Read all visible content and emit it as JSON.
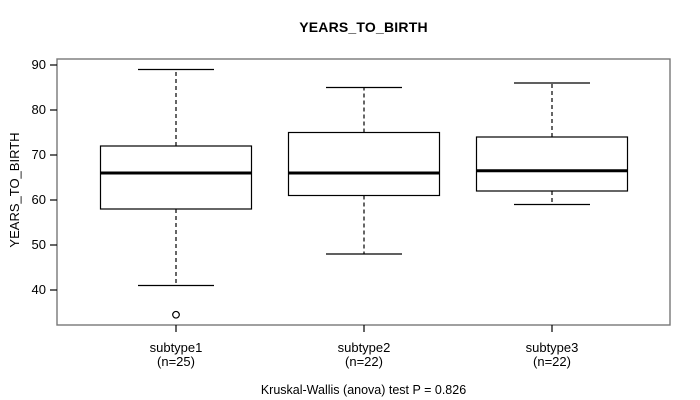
{
  "title": "YEARS_TO_BIRTH",
  "caption": "Kruskal-Wallis (anova) test P = 0.826",
  "y_axis": {
    "label": "YEARS_TO_BIRTH",
    "ticks": [
      90,
      80,
      70,
      60,
      50,
      40
    ]
  },
  "groups": [
    {
      "label": "subtype1",
      "sublabel": "(n=25)"
    },
    {
      "label": "subtype2",
      "sublabel": "(n=22)"
    },
    {
      "label": "subtype3",
      "sublabel": "(n=22)"
    }
  ],
  "colors": {
    "line": "#000000",
    "frame": "#777777",
    "box_fill": "#ffffff",
    "background": "#ffffff"
  },
  "chart_data": {
    "type": "boxplot",
    "title": "YEARS_TO_BIRTH",
    "ylabel": "YEARS_TO_BIRTH",
    "xlabel": "",
    "ylim": [
      32,
      91
    ],
    "yticks": [
      40,
      50,
      60,
      70,
      80,
      90
    ],
    "grid": false,
    "categories": [
      "subtype1 (n=25)",
      "subtype2 (n=22)",
      "subtype3 (n=22)"
    ],
    "series": [
      {
        "name": "subtype1",
        "n": 25,
        "whisker_low": 41,
        "q1": 58,
        "median": 66,
        "q3": 72,
        "whisker_high": 89,
        "outliers": [
          34.5
        ]
      },
      {
        "name": "subtype2",
        "n": 22,
        "whisker_low": 48,
        "q1": 61,
        "median": 66,
        "q3": 75,
        "whisker_high": 85,
        "outliers": []
      },
      {
        "name": "subtype3",
        "n": 22,
        "whisker_low": 59,
        "q1": 62,
        "median": 66.5,
        "q3": 74,
        "whisker_high": 86,
        "outliers": []
      }
    ],
    "annotation": "Kruskal-Wallis (anova) test P = 0.826"
  }
}
